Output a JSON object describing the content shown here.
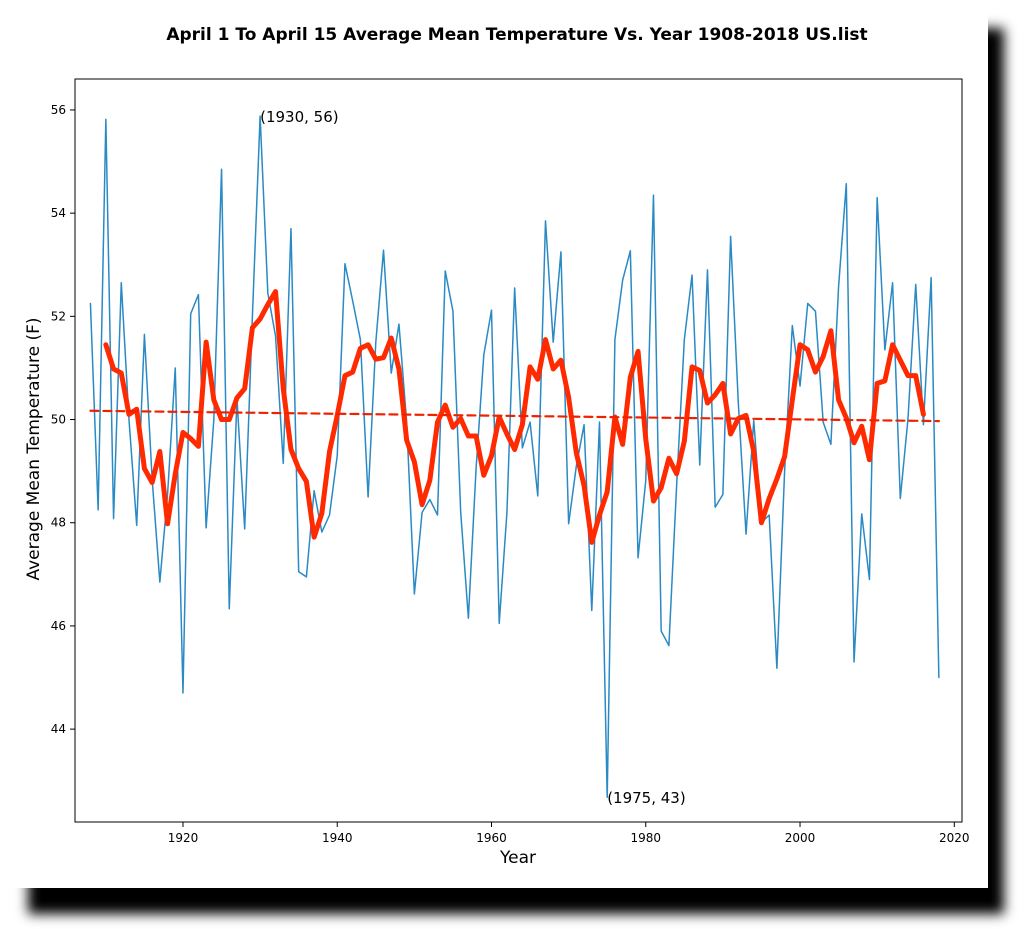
{
  "chart_data": {
    "type": "line",
    "title": "April 1 To April 15 Average Mean Temperature Vs. Year 1908-2018 US.list",
    "xlabel": "Year",
    "ylabel": "Average Mean Temperature (F)",
    "xlim": [
      1906,
      2021
    ],
    "ylim": [
      42.2,
      56.6
    ],
    "xticks": [
      1920,
      1940,
      1960,
      1980,
      2000,
      2020
    ],
    "yticks": [
      44,
      46,
      48,
      50,
      52,
      54,
      56
    ],
    "grid": false,
    "colors": {
      "raw": "#2a8ac4",
      "smooth": "#ff2a00",
      "trend": "#ee2200"
    },
    "series": [
      {
        "style": "thin-blue-line",
        "x": [
          1908,
          1909,
          1910,
          1911,
          1912,
          1913,
          1914,
          1915,
          1916,
          1917,
          1918,
          1919,
          1920,
          1921,
          1922,
          1923,
          1924,
          1925,
          1926,
          1927,
          1928,
          1929,
          1930,
          1931,
          1932,
          1933,
          1934,
          1935,
          1936,
          1937,
          1938,
          1939,
          1940,
          1941,
          1942,
          1943,
          1944,
          1945,
          1946,
          1947,
          1948,
          1949,
          1950,
          1951,
          1952,
          1953,
          1954,
          1955,
          1956,
          1957,
          1958,
          1959,
          1960,
          1961,
          1962,
          1963,
          1964,
          1965,
          1966,
          1967,
          1968,
          1969,
          1970,
          1971,
          1972,
          1973,
          1974,
          1975,
          1976,
          1977,
          1978,
          1979,
          1980,
          1981,
          1982,
          1983,
          1984,
          1985,
          1986,
          1987,
          1988,
          1989,
          1990,
          1991,
          1992,
          1993,
          1994,
          1995,
          1996,
          1997,
          1998,
          1999,
          2000,
          2001,
          2002,
          2003,
          2004,
          2005,
          2006,
          2007,
          2008,
          2009,
          2010,
          2011,
          2012,
          2013,
          2014,
          2015,
          2016,
          2017,
          2018
        ],
        "values": [
          52.25,
          48.25,
          55.82,
          48.08,
          52.65,
          50.0,
          47.95,
          51.65,
          48.85,
          46.85,
          48.55,
          51.0,
          44.7,
          52.05,
          52.42,
          47.9,
          50.0,
          54.85,
          46.33,
          50.4,
          47.88,
          52.0,
          55.88,
          52.45,
          51.62,
          49.15,
          53.7,
          47.05,
          46.95,
          48.62,
          47.82,
          48.15,
          49.3,
          53.02,
          52.3,
          51.55,
          48.5,
          51.5,
          53.28,
          50.9,
          51.85,
          49.95,
          46.62,
          48.2,
          48.45,
          48.15,
          52.88,
          52.1,
          48.22,
          46.15,
          49.05,
          51.25,
          52.12,
          46.05,
          48.2,
          52.55,
          49.45,
          49.95,
          48.52,
          53.85,
          51.5,
          53.25,
          47.98,
          49.1,
          49.9,
          46.3,
          49.95,
          42.68,
          51.55,
          52.7,
          53.27,
          47.32,
          48.82,
          54.35,
          45.9,
          45.62,
          48.72,
          51.55,
          52.8,
          49.12,
          52.9,
          48.3,
          48.55,
          53.55,
          50.32,
          47.78,
          49.98,
          48.0,
          48.15,
          45.18,
          49.0,
          51.82,
          50.65,
          52.25,
          52.1,
          49.95,
          49.52,
          52.58,
          54.57,
          45.3,
          48.17,
          46.9,
          54.3,
          51.35,
          52.65,
          48.47,
          50.02,
          52.62,
          49.9,
          52.75,
          45.0
        ]
      },
      {
        "style": "thick-red-smoothed",
        "x": [
          1910,
          1911,
          1912,
          1913,
          1914,
          1915,
          1916,
          1917,
          1918,
          1919,
          1920,
          1921,
          1922,
          1923,
          1924,
          1925,
          1926,
          1927,
          1928,
          1929,
          1930,
          1931,
          1932,
          1933,
          1934,
          1935,
          1936,
          1937,
          1938,
          1939,
          1940,
          1941,
          1942,
          1943,
          1944,
          1945,
          1946,
          1947,
          1948,
          1949,
          1950,
          1951,
          1952,
          1953,
          1954,
          1955,
          1956,
          1957,
          1958,
          1959,
          1960,
          1961,
          1962,
          1963,
          1964,
          1965,
          1966,
          1967,
          1968,
          1969,
          1970,
          1971,
          1972,
          1973,
          1974,
          1975,
          1976,
          1977,
          1978,
          1979,
          1980,
          1981,
          1982,
          1983,
          1984,
          1985,
          1986,
          1987,
          1988,
          1989,
          1990,
          1991,
          1992,
          1993,
          1994,
          1995,
          1996,
          1997,
          1998,
          1999,
          2000,
          2001,
          2002,
          2003,
          2004,
          2005,
          2006,
          2007,
          2008,
          2009,
          2010,
          2011,
          2012,
          2013,
          2014,
          2015,
          2016
        ],
        "values": [
          51.45,
          50.98,
          50.9,
          50.1,
          50.2,
          49.05,
          48.78,
          49.38,
          47.98,
          48.95,
          49.75,
          49.63,
          49.48,
          51.5,
          50.38,
          50.0,
          50.0,
          50.42,
          50.6,
          51.78,
          51.95,
          52.23,
          52.48,
          50.6,
          49.42,
          49.05,
          48.8,
          47.72,
          48.18,
          49.38,
          50.08,
          50.85,
          50.92,
          51.38,
          51.45,
          51.17,
          51.2,
          51.58,
          50.98,
          49.6,
          49.18,
          48.35,
          48.82,
          49.95,
          50.28,
          49.85,
          50.02,
          49.68,
          49.68,
          48.92,
          49.3,
          50.05,
          49.72,
          49.42,
          49.9,
          51.02,
          50.78,
          51.55,
          50.98,
          51.15,
          50.43,
          49.35,
          48.72,
          47.62,
          48.15,
          48.6,
          50.05,
          49.52,
          50.82,
          51.32,
          49.62,
          48.42,
          48.68,
          49.25,
          48.95,
          49.58,
          51.02,
          50.95,
          50.32,
          50.48,
          50.7,
          49.72,
          50.02,
          50.08,
          49.38,
          48.0,
          48.47,
          48.85,
          49.28,
          50.38,
          51.45,
          51.35,
          50.92,
          51.22,
          51.72,
          50.38,
          50.03,
          49.55,
          49.87,
          49.22,
          50.7,
          50.75,
          51.45,
          51.15,
          50.85,
          50.85,
          50.1
        ]
      },
      {
        "style": "dashed-red-trend",
        "x": [
          1908,
          2018
        ],
        "values": [
          50.17,
          49.97
        ]
      }
    ],
    "annotations": [
      {
        "text": "(1930, 56)",
        "x": 1930,
        "y": 55.88
      },
      {
        "text": "(1975, 43)",
        "x": 1975,
        "y": 42.68
      }
    ]
  }
}
